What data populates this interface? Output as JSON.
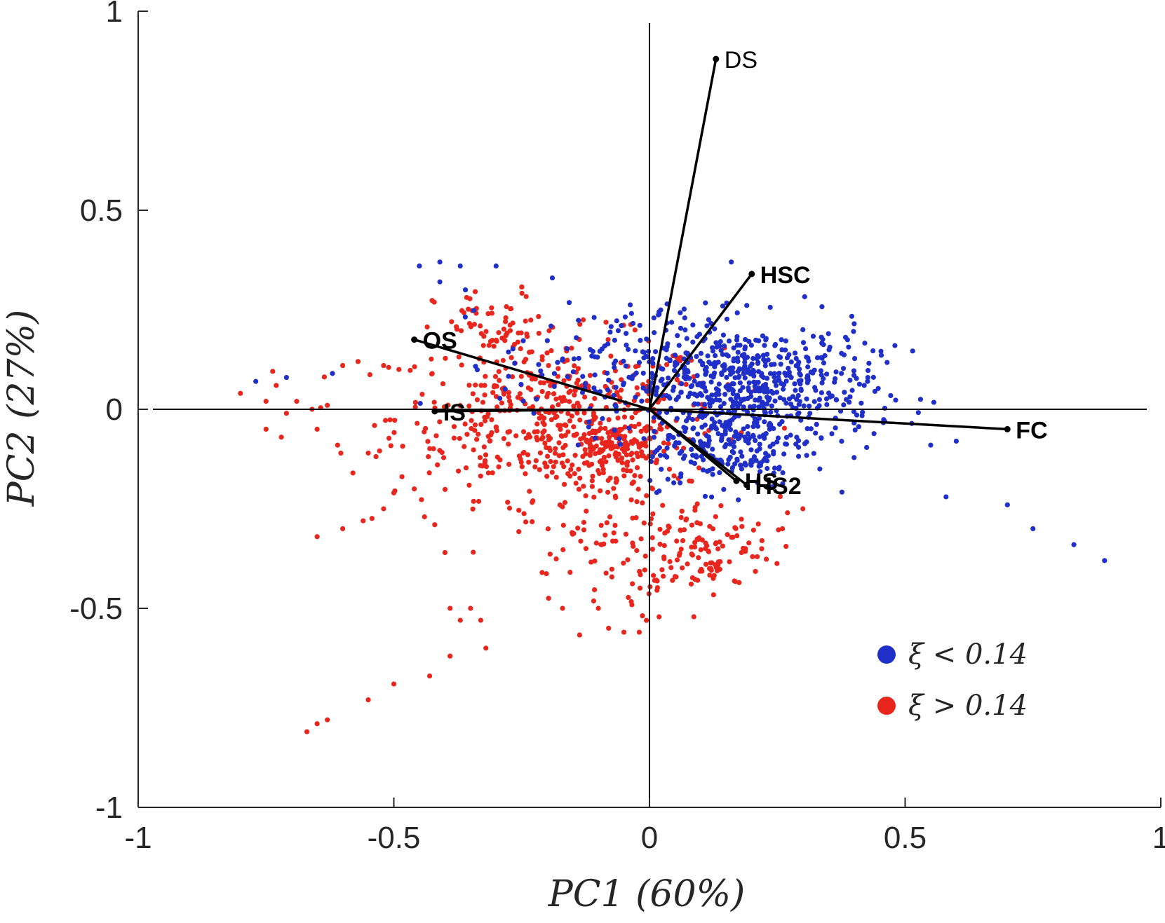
{
  "chart_data": {
    "type": "scatter",
    "title": "",
    "xlabel": "PC1 (60%)",
    "ylabel": "PC2 (27%)",
    "xlim": [
      -1,
      1
    ],
    "ylim": [
      -1,
      1
    ],
    "xticks": [
      "-1",
      "-0.5",
      "0",
      "0.5",
      "1"
    ],
    "yticks": [
      "-1",
      "-0.5",
      "0",
      "0.5",
      "1"
    ],
    "grid": false,
    "legend_position": "bottom-right",
    "legend": [
      {
        "label": "ξ < 0.14",
        "color": "#1f2fc8"
      },
      {
        "label": "ξ > 0.14",
        "color": "#e8261d"
      }
    ],
    "loadings": [
      {
        "name": "DS",
        "x": 0.13,
        "y": 0.88,
        "bold": false
      },
      {
        "name": "HSC",
        "x": 0.2,
        "y": 0.34,
        "bold": true
      },
      {
        "name": "OS",
        "x": -0.46,
        "y": 0.175,
        "bold": true
      },
      {
        "name": "IS",
        "x": -0.42,
        "y": -0.005,
        "bold": true
      },
      {
        "name": "FC",
        "x": 0.7,
        "y": -0.05,
        "bold": true
      },
      {
        "name": "HS",
        "x": 0.17,
        "y": -0.18,
        "bold": true
      },
      {
        "name": "HS2",
        "x": 0.19,
        "y": -0.19,
        "bold": true
      }
    ],
    "series": [
      {
        "name": "ξ < 0.14",
        "color": "#1f2fc8",
        "clusters": [
          {
            "cx": 0.2,
            "cy": 0.05,
            "sx": 0.12,
            "sy": 0.08,
            "n": 600
          },
          {
            "cx": -0.05,
            "cy": 0.12,
            "sx": 0.12,
            "sy": 0.07,
            "n": 150
          },
          {
            "cx": 0.15,
            "cy": -0.1,
            "sx": 0.08,
            "sy": 0.05,
            "n": 150
          }
        ],
        "points": [
          [
            0.48,
            0.16
          ],
          [
            0.55,
            -0.09
          ],
          [
            0.58,
            -0.22
          ],
          [
            0.6,
            -0.08
          ],
          [
            0.7,
            -0.24
          ],
          [
            0.75,
            -0.3
          ],
          [
            0.83,
            -0.34
          ],
          [
            0.89,
            -0.38
          ],
          [
            -0.41,
            0.32
          ],
          [
            -0.37,
            0.36
          ],
          [
            -0.41,
            0.37
          ],
          [
            -0.45,
            0.36
          ],
          [
            -0.3,
            0.36
          ],
          [
            -0.36,
            0.3
          ],
          [
            -0.19,
            0.33
          ],
          [
            -0.77,
            0.07
          ],
          [
            -0.71,
            0.08
          ],
          [
            -0.62,
            0.09
          ],
          [
            0.16,
            0.37
          ],
          [
            0.3,
            0.2
          ],
          [
            0.35,
            0.19
          ],
          [
            0.42,
            0.06
          ],
          [
            0.46,
            -0.03
          ]
        ]
      },
      {
        "name": "ξ > 0.14",
        "color": "#e8261d",
        "clusters": [
          {
            "cx": -0.18,
            "cy": -0.02,
            "sx": 0.16,
            "sy": 0.1,
            "n": 500
          },
          {
            "cx": -0.08,
            "cy": -0.1,
            "sx": 0.05,
            "sy": 0.03,
            "n": 120
          },
          {
            "cx": 0.1,
            "cy": -0.35,
            "sx": 0.07,
            "sy": 0.06,
            "n": 120
          },
          {
            "cx": -0.1,
            "cy": -0.3,
            "sx": 0.08,
            "sy": 0.12,
            "n": 100
          },
          {
            "cx": -0.3,
            "cy": 0.2,
            "sx": 0.06,
            "sy": 0.05,
            "n": 60
          }
        ],
        "points": [
          [
            -0.8,
            0.04
          ],
          [
            -0.75,
            0.02
          ],
          [
            -0.73,
            0.06
          ],
          [
            -0.71,
            -0.01
          ],
          [
            -0.69,
            0.02
          ],
          [
            -0.66,
            0.0
          ],
          [
            -0.63,
            0.01
          ],
          [
            -0.6,
            0.11
          ],
          [
            -0.57,
            0.12
          ],
          [
            -0.52,
            0.11
          ],
          [
            -0.49,
            0.1
          ],
          [
            -0.75,
            -0.05
          ],
          [
            -0.72,
            -0.07
          ],
          [
            -0.65,
            -0.05
          ],
          [
            -0.61,
            -0.09
          ],
          [
            -0.58,
            -0.16
          ],
          [
            -0.55,
            -0.11
          ],
          [
            -0.5,
            -0.21
          ],
          [
            -0.46,
            -0.2
          ],
          [
            -0.44,
            -0.27
          ],
          [
            -0.42,
            -0.29
          ],
          [
            -0.52,
            -0.25
          ],
          [
            -0.56,
            -0.28
          ],
          [
            -0.65,
            -0.32
          ],
          [
            -0.6,
            -0.3
          ],
          [
            -0.4,
            -0.36
          ],
          [
            -0.39,
            -0.5
          ],
          [
            -0.37,
            -0.53
          ],
          [
            -0.35,
            -0.5
          ],
          [
            -0.33,
            -0.53
          ],
          [
            -0.39,
            -0.62
          ],
          [
            -0.32,
            -0.6
          ],
          [
            -0.43,
            -0.67
          ],
          [
            -0.5,
            -0.69
          ],
          [
            -0.55,
            -0.73
          ],
          [
            -0.63,
            -0.78
          ],
          [
            -0.65,
            -0.79
          ],
          [
            -0.67,
            -0.81
          ],
          [
            -0.21,
            -0.41
          ],
          [
            -0.17,
            -0.5
          ],
          [
            -0.1,
            -0.5
          ],
          [
            -0.08,
            -0.55
          ],
          [
            -0.05,
            -0.56
          ],
          [
            -0.02,
            -0.56
          ],
          [
            0.01,
            -0.43
          ],
          [
            0.05,
            -0.42
          ],
          [
            0.12,
            -0.4
          ],
          [
            0.18,
            -0.36
          ],
          [
            0.22,
            -0.33
          ],
          [
            0.27,
            -0.26
          ],
          [
            0.3,
            -0.25
          ],
          [
            0.26,
            -0.3
          ]
        ]
      }
    ]
  }
}
